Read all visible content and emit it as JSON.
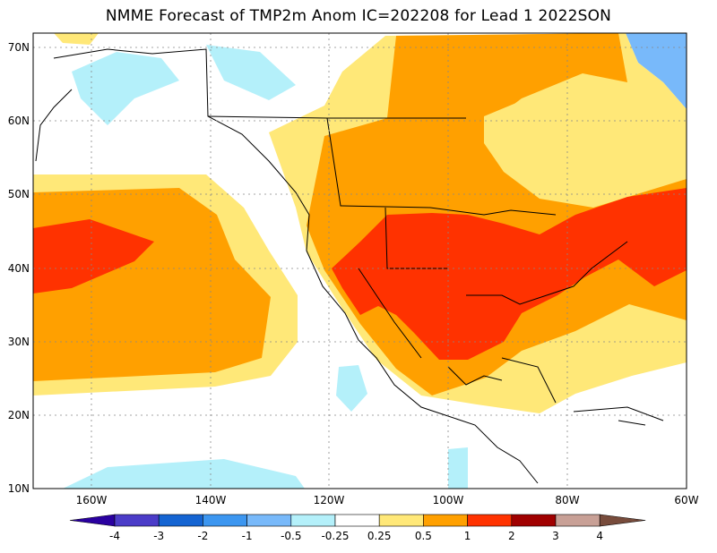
{
  "title": "NMME Forecast of TMP2m Anom IC=202208 for Lead 1 2022SON",
  "map": {
    "lon_range": [
      "170W",
      "60W"
    ],
    "lat_range": [
      "10N",
      "72N"
    ],
    "grid": "dotted",
    "lon_ticks": [
      "160W",
      "140W",
      "120W",
      "100W",
      "80W",
      "60W"
    ],
    "lat_ticks": [
      "10N",
      "20N",
      "30N",
      "40N",
      "50N",
      "60N",
      "70N"
    ]
  },
  "colorbar": {
    "labels": [
      "-4",
      "-3",
      "-2",
      "-1",
      "-0.5",
      "-0.25",
      "0.25",
      "0.5",
      "1",
      "2",
      "3",
      "4"
    ],
    "colors": [
      "#2a00a0",
      "#4b3cc8",
      "#1464d2",
      "#3c96f0",
      "#78b9fa",
      "#b4f0fa",
      "#ffffff",
      "#ffe878",
      "#ffa000",
      "#ff3200",
      "#a00000",
      "#c8a096",
      "#784c3c"
    ]
  }
}
